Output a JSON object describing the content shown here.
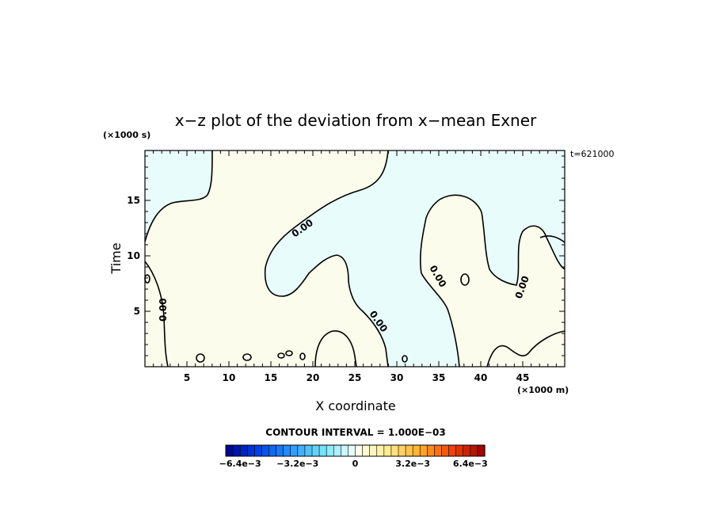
{
  "chart_data": {
    "type": "contour",
    "title": "x−z plot of the deviation from x−mean Exner",
    "xlabel": "X coordinate",
    "ylabel": "Time",
    "x_unit": "(×1000 m)",
    "y_unit": "(×1000 s)",
    "time_stamp": "t=621000",
    "xlim": [
      0,
      50
    ],
    "ylim": [
      0,
      19.5
    ],
    "x_ticks": [
      5,
      10,
      15,
      20,
      25,
      30,
      35,
      40,
      45
    ],
    "x_tick_labels": [
      "5",
      "10",
      "15",
      "20",
      "25",
      "30",
      "35",
      "40",
      "45"
    ],
    "y_ticks": [
      5,
      10,
      15
    ],
    "y_tick_labels": [
      "5",
      "10",
      "15"
    ],
    "contour_level": 0.0,
    "contour_labels": [
      "0.00",
      "0.00",
      "0.00",
      "0.00",
      "0.00"
    ],
    "contour_interval_text": "CONTOUR INTERVAL = 1.000E−03",
    "colorbar": {
      "min": -0.0072,
      "max": 0.0072,
      "step": 0.0004,
      "tick_labels": [
        "−6.4e−3",
        "−3.2e−3",
        "0",
        "3.2e−3",
        "6.4e−3"
      ],
      "tick_values": [
        -0.0064,
        -0.0032,
        0,
        0.0032,
        0.0064
      ]
    },
    "colors": {
      "negative_fill": "#e8fcfc",
      "positive_fill": "#fcfcec"
    }
  }
}
